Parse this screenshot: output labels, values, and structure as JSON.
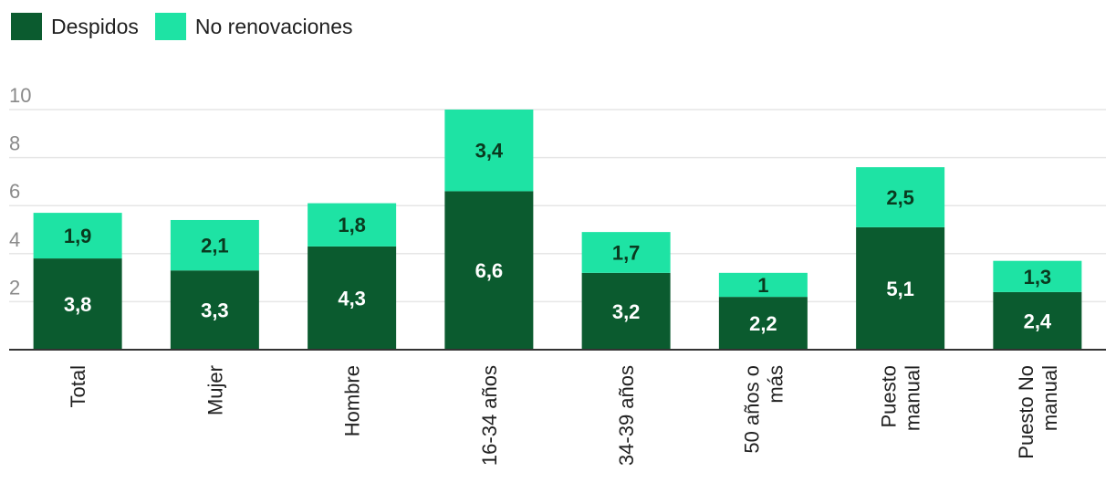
{
  "chart_data": {
    "type": "bar",
    "stacked": true,
    "categories": [
      [
        "Total"
      ],
      [
        "Mujer"
      ],
      [
        "Hombre"
      ],
      [
        "16-34 años"
      ],
      [
        "34-39 años"
      ],
      [
        "50 años o",
        "más"
      ],
      [
        "Puesto",
        "manual"
      ],
      [
        "Puesto No",
        "manual"
      ]
    ],
    "series": [
      {
        "name": "Despidos",
        "color": "#0b5b2f",
        "values": [
          3.8,
          3.3,
          4.3,
          6.6,
          3.2,
          2.2,
          5.1,
          2.4
        ],
        "labels": [
          "3,8",
          "3,3",
          "4,3",
          "6,6",
          "3,2",
          "2,2",
          "5,1",
          "2,4"
        ]
      },
      {
        "name": "No renovaciones",
        "color": "#1ee3a4",
        "values": [
          1.9,
          2.1,
          1.8,
          3.4,
          1.7,
          1,
          2.5,
          1.3
        ],
        "labels": [
          "1,9",
          "2,1",
          "1,8",
          "3,4",
          "1,7",
          "1",
          "2,5",
          "1,3"
        ]
      }
    ],
    "ylim": [
      0,
      10
    ],
    "yticks": [
      "2",
      "4",
      "6",
      "8",
      "10"
    ],
    "grid": true,
    "legend": "top-left"
  }
}
